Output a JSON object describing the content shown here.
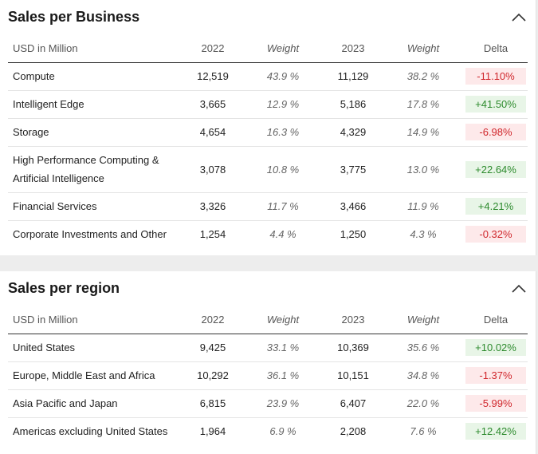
{
  "business": {
    "title": "Sales per Business",
    "collapse_icon": "chevron-up-icon",
    "headers": {
      "label": "USD in Million",
      "y1": "2022",
      "w1": "Weight",
      "y2": "2023",
      "w2": "Weight",
      "delta": "Delta"
    },
    "rows": [
      {
        "label": "Compute",
        "v2022": "12,519",
        "w2022": "43.9 %",
        "v2023": "11,129",
        "w2023": "38.2 %",
        "delta": "-11.10%"
      },
      {
        "label": "Intelligent Edge",
        "v2022": "3,665",
        "w2022": "12.9 %",
        "v2023": "5,186",
        "w2023": "17.8 %",
        "delta": "+41.50%"
      },
      {
        "label": "Storage",
        "v2022": "4,654",
        "w2022": "16.3 %",
        "v2023": "4,329",
        "w2023": "14.9 %",
        "delta": "-6.98%"
      },
      {
        "label_line1": "High Performance Computing &",
        "label_line2": "Artificial Intelligence",
        "v2022": "3,078",
        "w2022": "10.8 %",
        "v2023": "3,775",
        "w2023": "13.0 %",
        "delta": "+22.64%"
      },
      {
        "label": "Financial Services",
        "v2022": "3,326",
        "w2022": "11.7 %",
        "v2023": "3,466",
        "w2023": "11.9 %",
        "delta": "+4.21%"
      },
      {
        "label": "Corporate Investments and Other",
        "v2022": "1,254",
        "w2022": "4.4 %",
        "v2023": "1,250",
        "w2023": "4.3 %",
        "delta": "-0.32%"
      }
    ]
  },
  "region": {
    "title": "Sales per region",
    "collapse_icon": "chevron-up-icon",
    "headers": {
      "label": "USD in Million",
      "y1": "2022",
      "w1": "Weight",
      "y2": "2023",
      "w2": "Weight",
      "delta": "Delta"
    },
    "rows": [
      {
        "label": "United States",
        "v2022": "9,425",
        "w2022": "33.1 %",
        "v2023": "10,369",
        "w2023": "35.6 %",
        "delta": "+10.02%"
      },
      {
        "label": "Europe, Middle East and Africa",
        "v2022": "10,292",
        "w2022": "36.1 %",
        "v2023": "10,151",
        "w2023": "34.8 %",
        "delta": "-1.37%"
      },
      {
        "label": "Asia Pacific and Japan",
        "v2022": "6,815",
        "w2022": "23.9 %",
        "v2023": "6,407",
        "w2023": "22.0 %",
        "delta": "-5.99%"
      },
      {
        "label": "Americas excluding United States",
        "v2022": "1,964",
        "w2022": "6.9 %",
        "v2023": "2,208",
        "w2023": "7.6 %",
        "delta": "+12.42%"
      }
    ]
  },
  "colors": {
    "negative_text": "#d0272c",
    "negative_bg": "#fde9ea",
    "positive_text": "#2e8b2e",
    "positive_bg": "#e8f5e7"
  }
}
